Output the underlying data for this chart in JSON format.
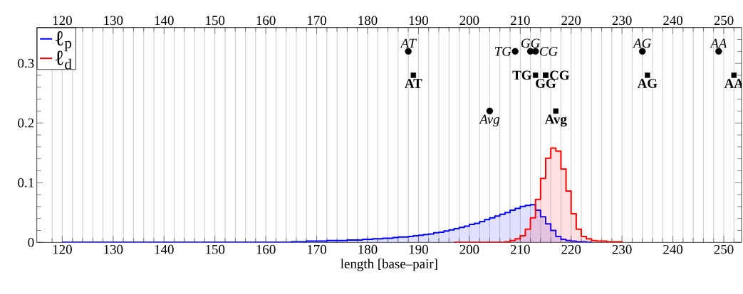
{
  "chart_data": {
    "type": "step",
    "xlabel": "length [base–pair]",
    "xlim": [
      115,
      253.5
    ],
    "ylim": [
      0,
      0.36
    ],
    "x2lim": [
      115,
      253.5
    ],
    "xticks": [
      {
        "value": 118,
        "label": null
      },
      120,
      {
        "value": 122,
        "label": null
      },
      {
        "value": 124,
        "label": null
      },
      {
        "value": 126,
        "label": null
      },
      {
        "value": 128,
        "label": null
      },
      130,
      {
        "value": 132,
        "label": null
      },
      {
        "value": 134,
        "label": null
      },
      {
        "value": 136,
        "label": null
      },
      {
        "value": 138,
        "label": null
      },
      140,
      {
        "value": 142,
        "label": null
      },
      {
        "value": 144,
        "label": null
      },
      {
        "value": 146,
        "label": null
      },
      {
        "value": 148,
        "label": null
      },
      150,
      {
        "value": 152,
        "label": null
      },
      {
        "value": 154,
        "label": null
      },
      {
        "value": 156,
        "label": null
      },
      {
        "value": 158,
        "label": null
      },
      160,
      {
        "value": 162,
        "label": null
      },
      {
        "value": 164,
        "label": null
      },
      {
        "value": 166,
        "label": null
      },
      {
        "value": 168,
        "label": null
      },
      170,
      {
        "value": 172,
        "label": null
      },
      {
        "value": 174,
        "label": null
      },
      {
        "value": 176,
        "label": null
      },
      {
        "value": 178,
        "label": null
      },
      180,
      {
        "value": 182,
        "label": null
      },
      {
        "value": 184,
        "label": null
      },
      {
        "value": 186,
        "label": null
      },
      {
        "value": 188,
        "label": null
      },
      190,
      {
        "value": 192,
        "label": null
      },
      {
        "value": 194,
        "label": null
      },
      {
        "value": 196,
        "label": null
      },
      {
        "value": 198,
        "label": null
      },
      200,
      {
        "value": 202,
        "label": null
      },
      {
        "value": 204,
        "label": null
      },
      {
        "value": 206,
        "label": null
      },
      {
        "value": 208,
        "label": null
      },
      210,
      {
        "value": 212,
        "label": null
      },
      {
        "value": 214,
        "label": null
      },
      {
        "value": 216,
        "label": null
      },
      {
        "value": 218,
        "label": null
      },
      220,
      {
        "value": 222,
        "label": null
      },
      {
        "value": 224,
        "label": null
      },
      {
        "value": 226,
        "label": null
      },
      {
        "value": 228,
        "label": null
      },
      230,
      {
        "value": 232,
        "label": null
      },
      {
        "value": 234,
        "label": null
      },
      {
        "value": 236,
        "label": null
      },
      {
        "value": 238,
        "label": null
      },
      240,
      {
        "value": 242,
        "label": null
      },
      {
        "value": 244,
        "label": null
      },
      {
        "value": 246,
        "label": null
      },
      {
        "value": 248,
        "label": null
      },
      250,
      {
        "value": 252,
        "label": null
      }
    ],
    "x2ticks": [
      120,
      130,
      140,
      150,
      160,
      170,
      180,
      190,
      200,
      210,
      220,
      230,
      240,
      250
    ],
    "yticks": [
      0,
      {
        "value": 0.02,
        "label": null
      },
      {
        "value": 0.04,
        "label": null
      },
      {
        "value": 0.06,
        "label": null
      },
      {
        "value": 0.08,
        "label": null
      },
      0.1,
      {
        "value": 0.12,
        "label": null
      },
      {
        "value": 0.14,
        "label": null
      },
      {
        "value": 0.16,
        "label": null
      },
      {
        "value": 0.18,
        "label": null
      },
      0.2,
      {
        "value": 0.22,
        "label": null
      },
      {
        "value": 0.24,
        "label": null
      },
      {
        "value": 0.26,
        "label": null
      },
      {
        "value": 0.28,
        "label": null
      },
      0.3,
      {
        "value": 0.32,
        "label": null
      },
      {
        "value": 0.34,
        "label": null
      }
    ],
    "grid": "x",
    "legend": "top left",
    "series": [
      {
        "name": "ℓ$_{p}$",
        "color": "#0000ff",
        "x": [
          120,
          121,
          122,
          123,
          124,
          125,
          126,
          127,
          128,
          129,
          130,
          131,
          132,
          133,
          134,
          135,
          136,
          137,
          138,
          139,
          140,
          141,
          142,
          143,
          144,
          145,
          146,
          147,
          148,
          149,
          150,
          151,
          152,
          153,
          154,
          155,
          156,
          157,
          158,
          159,
          160,
          161,
          162,
          163,
          164,
          165,
          166,
          167,
          168,
          169,
          170,
          171,
          172,
          173,
          174,
          175,
          176,
          177,
          178,
          179,
          180,
          181,
          182,
          183,
          184,
          185,
          186,
          187,
          188,
          189,
          190,
          191,
          192,
          193,
          194,
          195,
          196,
          197,
          198,
          199,
          200,
          201,
          202,
          203,
          204,
          205,
          206,
          207,
          208,
          209,
          210,
          211,
          212,
          213,
          214,
          215,
          216,
          217,
          218,
          219,
          220,
          221,
          222,
          223,
          224
        ],
        "values": [
          0,
          0,
          0,
          0,
          0,
          0,
          0,
          0,
          0,
          0,
          0,
          0,
          0,
          0,
          0,
          0,
          0,
          0,
          0,
          0,
          0,
          0,
          0,
          0,
          0,
          0,
          0,
          0,
          0,
          0,
          0,
          0,
          0,
          0,
          0,
          0,
          0,
          0,
          0,
          0,
          0,
          0,
          0,
          0,
          0,
          0.001,
          0.001,
          0.001,
          0.002,
          0.002,
          0.002,
          0.002,
          0.003,
          0.003,
          0.003,
          0.003,
          0.004,
          0.004,
          0.004,
          0.005,
          0.005,
          0.006,
          0.006,
          0.007,
          0.007,
          0.008,
          0.009,
          0.009,
          0.01,
          0.011,
          0.012,
          0.013,
          0.014,
          0.016,
          0.017,
          0.019,
          0.021,
          0.023,
          0.025,
          0.027,
          0.03,
          0.032,
          0.035,
          0.038,
          0.041,
          0.044,
          0.047,
          0.05,
          0.054,
          0.057,
          0.06,
          0.062,
          0.063,
          0.054,
          0.043,
          0.031,
          0.02,
          0.01,
          0.005,
          0.003,
          0.002,
          0.001,
          0.001,
          0,
          0
        ]
      },
      {
        "name": "ℓ$_{d}$",
        "color": "#ff0000",
        "x": [
          197,
          198,
          199,
          200,
          201,
          202,
          203,
          204,
          205,
          206,
          207,
          208,
          209,
          210,
          211,
          212,
          213,
          214,
          215,
          216,
          217,
          218,
          219,
          220,
          221,
          222,
          223,
          224,
          225,
          226,
          227,
          228,
          229,
          230
        ],
        "values": [
          0,
          0,
          0,
          0,
          0,
          0,
          0,
          0,
          0,
          0,
          0.001,
          0.003,
          0.006,
          0.011,
          0.022,
          0.041,
          0.072,
          0.107,
          0.141,
          0.158,
          0.153,
          0.123,
          0.086,
          0.048,
          0.022,
          0.01,
          0.006,
          0.003,
          0.002,
          0.002,
          0.001,
          0.001,
          0.001,
          0
        ]
      },
      {
        "type": "scatter",
        "marker": "circle",
        "color": "#000000",
        "x": [
          188,
          209,
          212,
          213,
          234,
          249,
          204
        ],
        "values": [
          0.32,
          0.32,
          0.32,
          0.32,
          0.32,
          0.32,
          0.22
        ],
        "value_labels": [
          "AT",
          "TG",
          "GG",
          "CG",
          "AG",
          "AA",
          "Avg"
        ]
      },
      {
        "type": "scatter",
        "marker": "square",
        "color": "#000000",
        "x": [
          189,
          213,
          215,
          215,
          235,
          252,
          217
        ],
        "values": [
          0.28,
          0.28,
          0.28,
          0.28,
          0.28,
          0.28,
          0.22
        ],
        "value_labels": [
          "AT",
          "TG",
          "GG",
          "CG",
          "AG",
          "AA",
          "Avg"
        ]
      }
    ]
  }
}
